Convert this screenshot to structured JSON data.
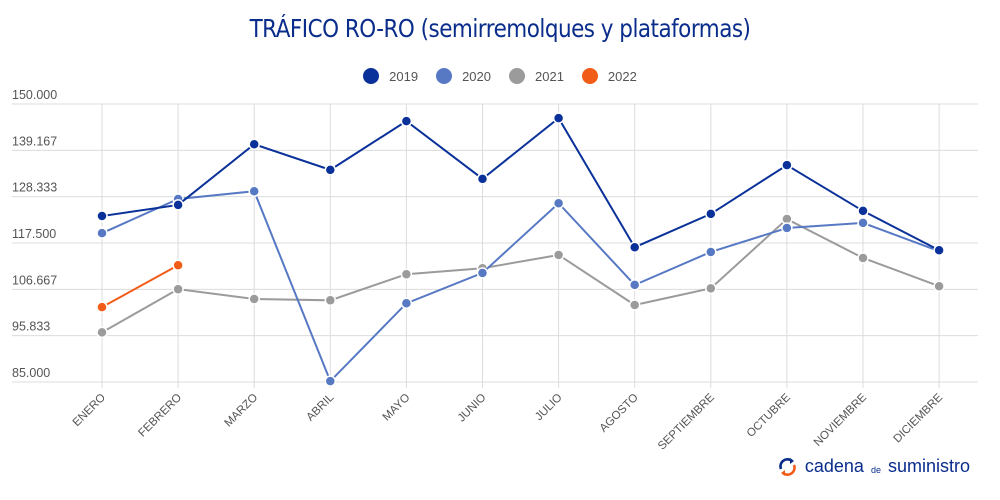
{
  "chart_data": {
    "type": "line",
    "title": "TRÁFICO RO-RO (semirremolques y plataformas)",
    "xlabel": "",
    "ylabel": "",
    "categories": [
      "ENERO",
      "FEBRERO",
      "MARZO",
      "ABRIL",
      "MAYO",
      "JUNIO",
      "JULIO",
      "AGOSTO",
      "SEPTIEMBRE",
      "OCTUBRE",
      "NOVIEMBRE",
      "DICIEMBRE"
    ],
    "ylim": [
      85000,
      150000
    ],
    "yticks": [
      "150.000",
      "139.167",
      "128.333",
      "117.500",
      "106.667",
      "95.833",
      "85.000"
    ],
    "grid": true,
    "legend_position": "top",
    "series": [
      {
        "name": "2019",
        "color": "#0a3199",
        "values": [
          123800,
          126400,
          140600,
          134600,
          146000,
          132500,
          146700,
          116500,
          124300,
          135700,
          125000,
          115800
        ]
      },
      {
        "name": "2020",
        "color": "#5779c4",
        "values": [
          119800,
          127800,
          129600,
          85200,
          103400,
          110500,
          126800,
          107700,
          115400,
          121000,
          122200,
          115600
        ]
      },
      {
        "name": "2021",
        "color": "#9b9b9b",
        "values": [
          96600,
          106700,
          104400,
          104100,
          110200,
          111600,
          114700,
          103000,
          106900,
          123100,
          114000,
          107400
        ]
      },
      {
        "name": "2022",
        "color": "#f25c19",
        "values": [
          102500,
          112300,
          null,
          null,
          null,
          null,
          null,
          null,
          null,
          null,
          null,
          null
        ]
      }
    ]
  },
  "brand": {
    "part1": "cadena",
    "part2": "de",
    "part3": "suministro"
  }
}
